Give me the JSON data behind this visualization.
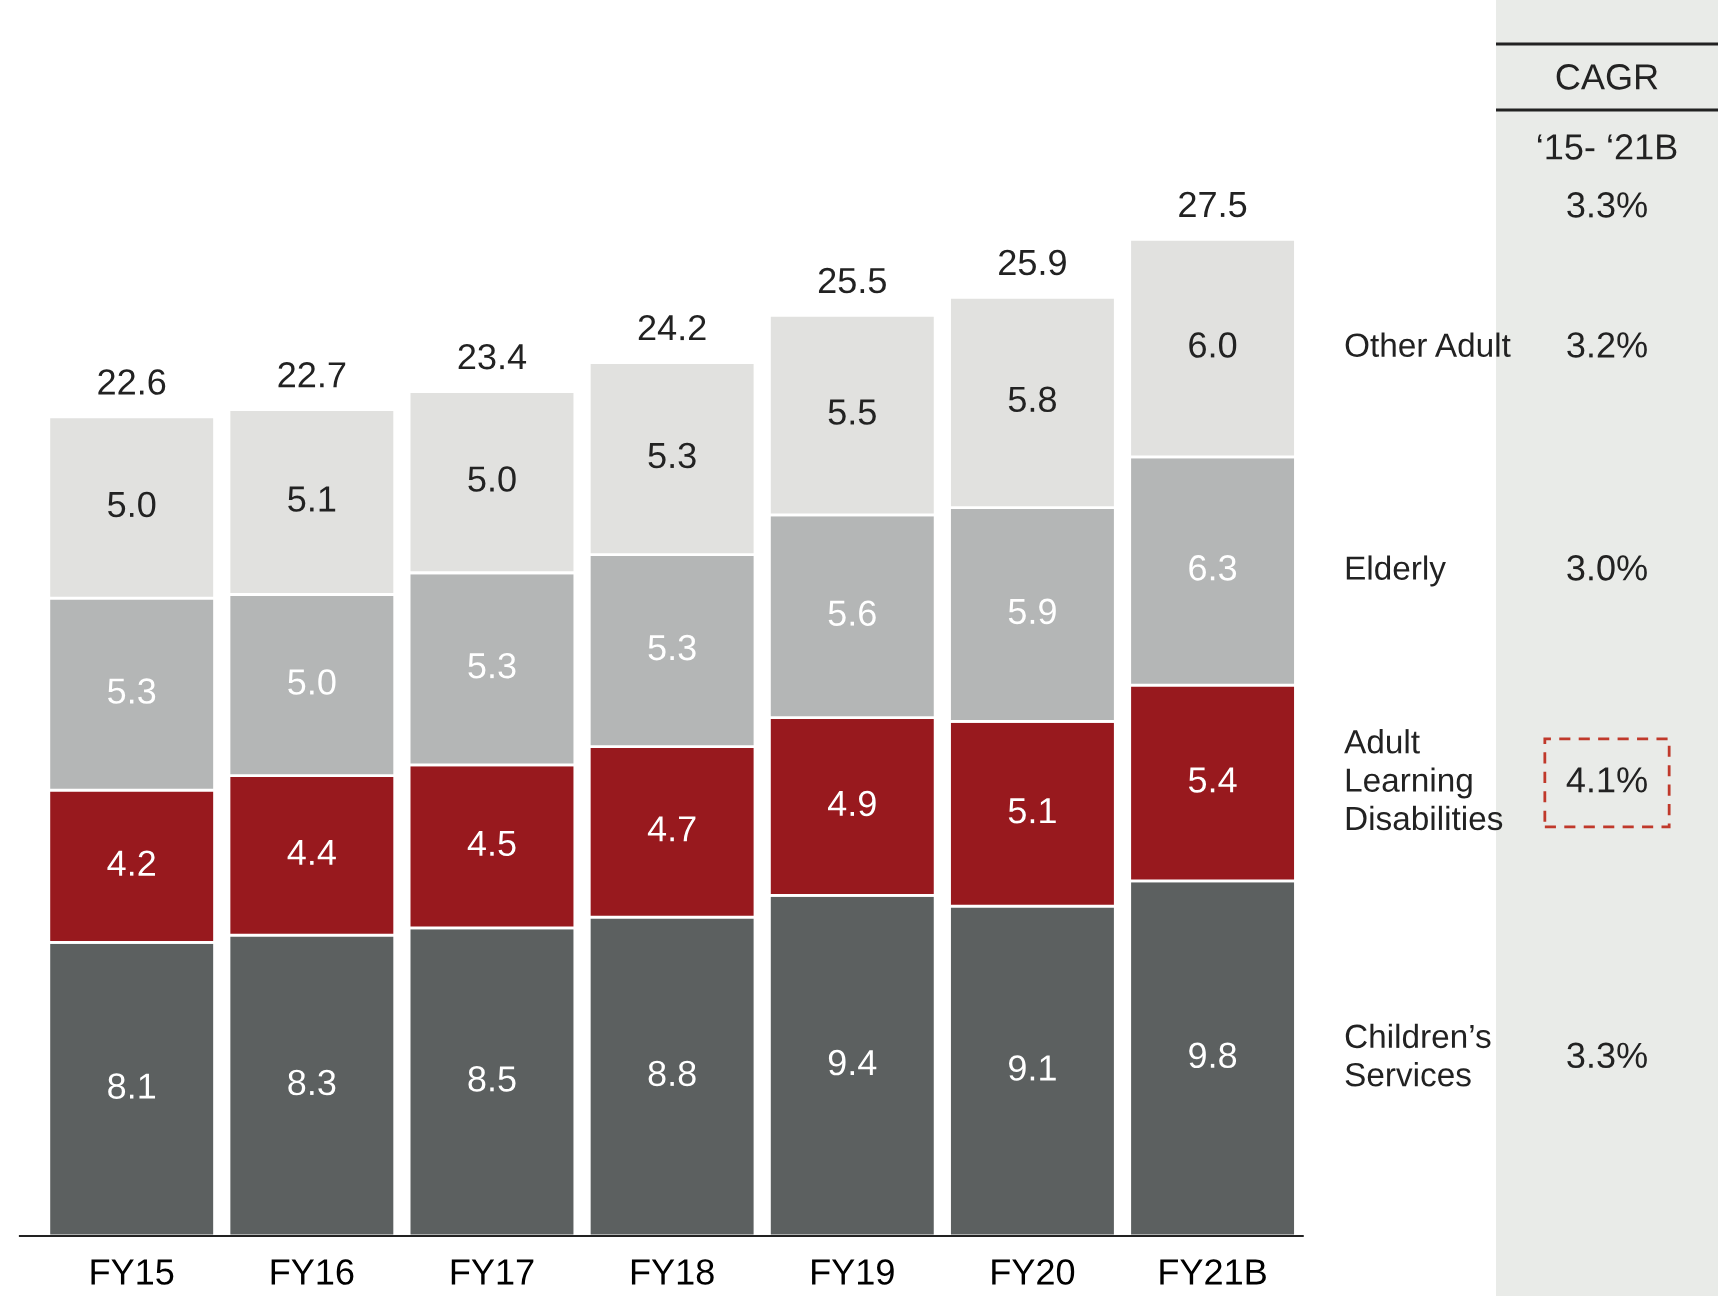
{
  "chart_data": {
    "type": "bar",
    "stacked": true,
    "categories": [
      "FY15",
      "FY16",
      "FY17",
      "FY18",
      "FY19",
      "FY20",
      "FY21B"
    ],
    "series": [
      {
        "name": "Children’s Services",
        "color": "#5c6060",
        "values": [
          8.1,
          8.3,
          8.5,
          8.8,
          9.4,
          9.1,
          9.8
        ],
        "value_labels": [
          "8.1",
          "8.3",
          "8.5",
          "8.8",
          "9.4",
          "9.1",
          "9.8"
        ]
      },
      {
        "name": "Adult Learning Disabilities",
        "color": "#98191e",
        "values": [
          4.2,
          4.4,
          4.5,
          4.7,
          4.9,
          5.1,
          5.4
        ],
        "value_labels": [
          "4.2",
          "4.4",
          "4.5",
          "4.7",
          "4.9",
          "5.1",
          "5.4"
        ]
      },
      {
        "name": "Elderly",
        "color": "#b4b6b6",
        "values": [
          5.3,
          5.0,
          5.3,
          5.3,
          5.6,
          5.9,
          6.3
        ],
        "value_labels": [
          "5.3",
          "5.0",
          "5.3",
          "5.3",
          "5.6",
          "5.9",
          "6.3"
        ]
      },
      {
        "name": "Other Adult",
        "color": "#e1e1df",
        "values": [
          5.0,
          5.1,
          5.0,
          5.3,
          5.5,
          5.8,
          6.0
        ],
        "value_labels": [
          "5.0",
          "5.1",
          "5.0",
          "5.3",
          "5.5",
          "5.8",
          "6.0"
        ]
      }
    ],
    "totals": [
      "22.6",
      "22.7",
      "23.4",
      "24.2",
      "25.5",
      "25.9",
      "27.5"
    ],
    "annotations": [
      "CAGR",
      "‘15- ‘21B",
      "3.3%",
      "3.2%",
      "3.0%",
      "4.1%",
      "3.3%"
    ],
    "legend": "right",
    "grid": false
  }
}
